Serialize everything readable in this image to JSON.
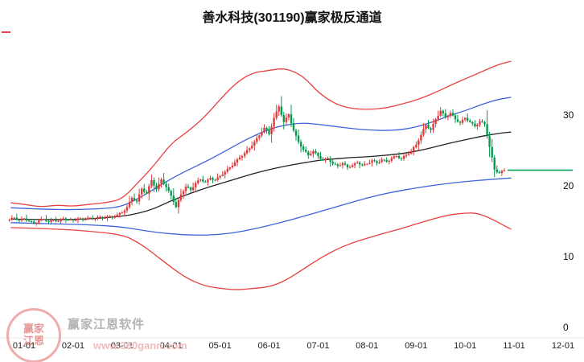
{
  "title": "善水科技(301190)赢家极反通道",
  "watermark": {
    "logo_line1": "赢家",
    "logo_line2": "江恩",
    "brand_text": "赢家江恩软件",
    "url_text": "www.360gann.com"
  },
  "axes": {
    "x_labels": [
      "01-01",
      "02-01",
      "03-01",
      "04-01",
      "05-01",
      "06-01",
      "07-01",
      "08-01",
      "09-01",
      "10-01",
      "11-01",
      "12-01"
    ],
    "y_ticks": [
      30,
      20,
      10,
      0
    ]
  },
  "colors": {
    "up": "#e03a3a",
    "down": "#069a4f",
    "band_red": "#e84040",
    "band_blue": "#3d63d9",
    "band_mid": "#222222",
    "ref_green": "#00a05a",
    "baseline": "#e9e9e9"
  },
  "chart_data": {
    "type": "candlestick",
    "title": "善水科技(301190)赢家极反通道",
    "x_axis": {
      "tick_labels": [
        "01-01",
        "02-01",
        "03-01",
        "04-01",
        "05-01",
        "06-01",
        "07-01",
        "08-01",
        "09-01",
        "10-01",
        "11-01",
        "12-01"
      ],
      "days_per_month": 30
    },
    "y_axis": {
      "ticks": [
        0,
        10,
        20,
        30
      ],
      "range": [
        0,
        41
      ]
    },
    "candles": {
      "start_day": -9,
      "step_days": 3,
      "closes": [
        15.2,
        15.5,
        15.1,
        15.4,
        15.0,
        14.7,
        15.1,
        15.3,
        14.9,
        15.2,
        15.0,
        15.4,
        15.2,
        15.1,
        15.4,
        15.2,
        15.5,
        15.3,
        15.6,
        15.4,
        15.7,
        15.5,
        15.9,
        16.2,
        17.0,
        18.3,
        17.8,
        19.6,
        18.9,
        20.8,
        19.5,
        20.9,
        19.8,
        18.6,
        17.0,
        18.8,
        19.9,
        19.4,
        20.4,
        20.9,
        20.5,
        21.1,
        20.8,
        21.4,
        22.0,
        22.6,
        23.3,
        24.0,
        24.6,
        25.3,
        26.2,
        27.1,
        28.2,
        27.3,
        29.6,
        31.2,
        29.0,
        30.1,
        27.8,
        26.2,
        25.1,
        24.3,
        24.9,
        24.2,
        23.6,
        23.9,
        23.1,
        22.8,
        23.2,
        22.6,
        22.9,
        23.3,
        22.9,
        23.1,
        23.6,
        23.2,
        23.7,
        23.4,
        23.9,
        24.2,
        23.8,
        24.4,
        24.9,
        25.8,
        27.2,
        28.6,
        27.9,
        29.4,
        30.6,
        29.7,
        30.3,
        29.4,
        28.9,
        29.6,
        29.0,
        28.4,
        29.1,
        28.7,
        25.5,
        22.3,
        21.8,
        22.2
      ],
      "wick_hi": [
        0.5,
        0.9,
        0.3,
        1.1,
        0.4,
        0.7,
        0.2,
        1.0,
        0.6,
        0.3,
        0.8,
        0.4
      ],
      "wick_lo": [
        0.4,
        0.2,
        0.8,
        0.3,
        1.0,
        0.5,
        0.3,
        0.7,
        0.2,
        0.9,
        0.4,
        0.6
      ]
    },
    "bands": {
      "red_upper": [
        [
          -8,
          17.6
        ],
        [
          0,
          17.4
        ],
        [
          10,
          17.0
        ],
        [
          20,
          17.3
        ],
        [
          30,
          17.1
        ],
        [
          40,
          17.4
        ],
        [
          50,
          17.6
        ],
        [
          60,
          18.1
        ],
        [
          70,
          20.5
        ],
        [
          80,
          23.0
        ],
        [
          90,
          26.0
        ],
        [
          100,
          27.6
        ],
        [
          110,
          29.6
        ],
        [
          120,
          32.2
        ],
        [
          130,
          34.6
        ],
        [
          140,
          36.0
        ],
        [
          150,
          36.3
        ],
        [
          158,
          36.6
        ],
        [
          165,
          36.2
        ],
        [
          172,
          35.2
        ],
        [
          180,
          33.2
        ],
        [
          190,
          31.6
        ],
        [
          200,
          30.9
        ],
        [
          212,
          30.8
        ],
        [
          222,
          31.0
        ],
        [
          232,
          31.6
        ],
        [
          240,
          32.1
        ],
        [
          250,
          33.0
        ],
        [
          260,
          34.1
        ],
        [
          270,
          35.1
        ],
        [
          280,
          36.1
        ],
        [
          290,
          37.1
        ],
        [
          298,
          37.6
        ]
      ],
      "blue_upper": [
        [
          -8,
          16.9
        ],
        [
          10,
          16.7
        ],
        [
          30,
          16.6
        ],
        [
          50,
          16.8
        ],
        [
          60,
          17.1
        ],
        [
          70,
          18.2
        ],
        [
          80,
          19.6
        ],
        [
          90,
          21.0
        ],
        [
          100,
          22.2
        ],
        [
          110,
          23.3
        ],
        [
          120,
          24.5
        ],
        [
          130,
          25.8
        ],
        [
          140,
          27.0
        ],
        [
          150,
          28.0
        ],
        [
          160,
          28.6
        ],
        [
          170,
          28.9
        ],
        [
          180,
          28.7
        ],
        [
          190,
          28.4
        ],
        [
          200,
          28.1
        ],
        [
          210,
          27.9
        ],
        [
          220,
          27.8
        ],
        [
          230,
          27.9
        ],
        [
          240,
          28.3
        ],
        [
          250,
          29.0
        ],
        [
          260,
          29.9
        ],
        [
          270,
          30.6
        ],
        [
          280,
          31.5
        ],
        [
          290,
          32.2
        ],
        [
          298,
          32.5
        ]
      ],
      "middle": [
        [
          -8,
          15.3
        ],
        [
          20,
          15.2
        ],
        [
          40,
          15.3
        ],
        [
          60,
          15.7
        ],
        [
          70,
          16.1
        ],
        [
          80,
          16.8
        ],
        [
          90,
          17.9
        ],
        [
          100,
          18.8
        ],
        [
          110,
          19.6
        ],
        [
          120,
          20.3
        ],
        [
          130,
          21.0
        ],
        [
          140,
          21.7
        ],
        [
          150,
          22.3
        ],
        [
          160,
          22.8
        ],
        [
          170,
          23.2
        ],
        [
          180,
          23.6
        ],
        [
          190,
          23.8
        ],
        [
          200,
          24.0
        ],
        [
          210,
          24.1
        ],
        [
          220,
          24.3
        ],
        [
          230,
          24.5
        ],
        [
          240,
          24.9
        ],
        [
          250,
          25.4
        ],
        [
          260,
          26.0
        ],
        [
          270,
          26.5
        ],
        [
          280,
          27.0
        ],
        [
          290,
          27.4
        ],
        [
          298,
          27.6
        ]
      ],
      "blue_lower": [
        [
          -8,
          14.8
        ],
        [
          20,
          14.6
        ],
        [
          40,
          14.5
        ],
        [
          60,
          14.2
        ],
        [
          75,
          13.6
        ],
        [
          90,
          13.2
        ],
        [
          105,
          13.0
        ],
        [
          120,
          13.1
        ],
        [
          135,
          13.6
        ],
        [
          150,
          14.4
        ],
        [
          165,
          15.3
        ],
        [
          180,
          16.3
        ],
        [
          195,
          17.3
        ],
        [
          210,
          18.3
        ],
        [
          225,
          19.1
        ],
        [
          240,
          19.7
        ],
        [
          255,
          20.2
        ],
        [
          270,
          20.6
        ],
        [
          285,
          20.9
        ],
        [
          298,
          21.1
        ]
      ],
      "red_lower": [
        [
          -8,
          14.1
        ],
        [
          20,
          13.9
        ],
        [
          40,
          13.6
        ],
        [
          60,
          13.1
        ],
        [
          70,
          12.0
        ],
        [
          80,
          10.3
        ],
        [
          90,
          8.5
        ],
        [
          100,
          6.9
        ],
        [
          110,
          5.9
        ],
        [
          120,
          5.5
        ],
        [
          130,
          5.3
        ],
        [
          140,
          5.5
        ],
        [
          150,
          5.7
        ],
        [
          160,
          6.6
        ],
        [
          170,
          8.1
        ],
        [
          180,
          9.6
        ],
        [
          190,
          10.9
        ],
        [
          200,
          11.9
        ],
        [
          210,
          12.6
        ],
        [
          220,
          13.3
        ],
        [
          230,
          13.9
        ],
        [
          240,
          14.6
        ],
        [
          250,
          15.3
        ],
        [
          260,
          15.9
        ],
        [
          268,
          16.1
        ],
        [
          276,
          16.2
        ],
        [
          284,
          15.6
        ],
        [
          292,
          14.6
        ],
        [
          298,
          13.9
        ]
      ]
    },
    "reference_line": {
      "value": 22.2,
      "from_day": 296
    }
  }
}
